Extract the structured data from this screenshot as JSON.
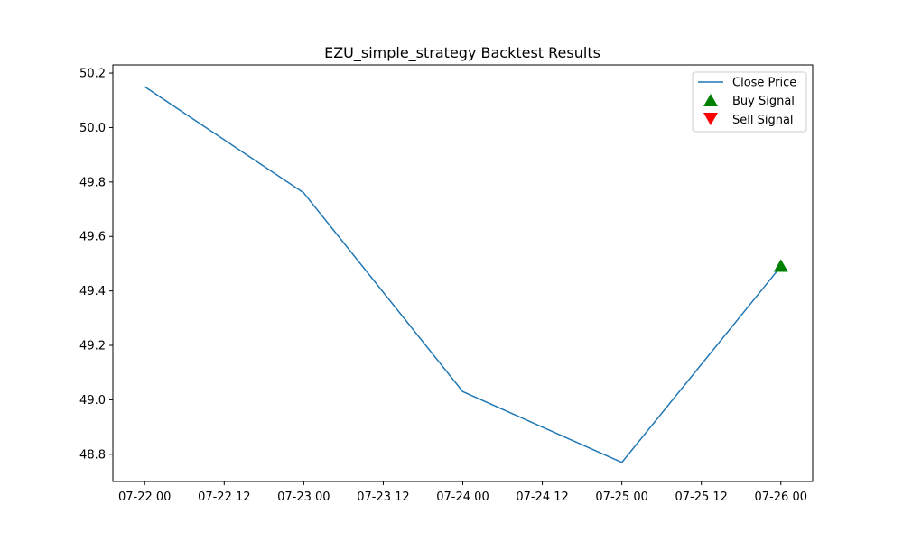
{
  "chart_data": {
    "type": "line",
    "title": "EZU_simple_strategy Backtest Results",
    "xlabel": "",
    "ylabel": "",
    "x": [
      "2024-07-22T00:00",
      "2024-07-23T00:00",
      "2024-07-24T00:00",
      "2024-07-25T00:00",
      "2024-07-26T00:00"
    ],
    "x_tick_values": [
      "2024-07-22T00:00",
      "2024-07-22T12:00",
      "2024-07-23T00:00",
      "2024-07-23T12:00",
      "2024-07-24T00:00",
      "2024-07-24T12:00",
      "2024-07-25T00:00",
      "2024-07-25T12:00",
      "2024-07-26T00:00"
    ],
    "x_tick_labels": [
      "07-22 00",
      "07-22 12",
      "07-23 00",
      "07-23 12",
      "07-24 00",
      "07-24 12",
      "07-25 00",
      "07-25 12",
      "07-26 00"
    ],
    "xlim": [
      "2024-07-21T19:12",
      "2024-07-26T04:48"
    ],
    "ylim": [
      48.7,
      50.23
    ],
    "y_ticks": [
      48.8,
      49.0,
      49.2,
      49.4,
      49.6,
      49.8,
      50.0,
      50.2
    ],
    "y_tick_labels": [
      "48.8",
      "49.0",
      "49.2",
      "49.4",
      "49.6",
      "49.8",
      "50.0",
      "50.2"
    ],
    "grid": false,
    "legend_position": "top-right",
    "series": [
      {
        "name": "Close Price",
        "kind": "line",
        "color": "#1f77b4",
        "values": [
          50.15,
          49.76,
          49.03,
          48.77,
          49.49
        ]
      },
      {
        "name": "Buy Signal",
        "kind": "marker",
        "marker": "triangle-up",
        "color": "#008000",
        "points": [
          {
            "x": "2024-07-26T00:00",
            "y": 49.49
          }
        ]
      },
      {
        "name": "Sell Signal",
        "kind": "marker",
        "marker": "triangle-down",
        "color": "#ff0000",
        "points": []
      }
    ]
  }
}
